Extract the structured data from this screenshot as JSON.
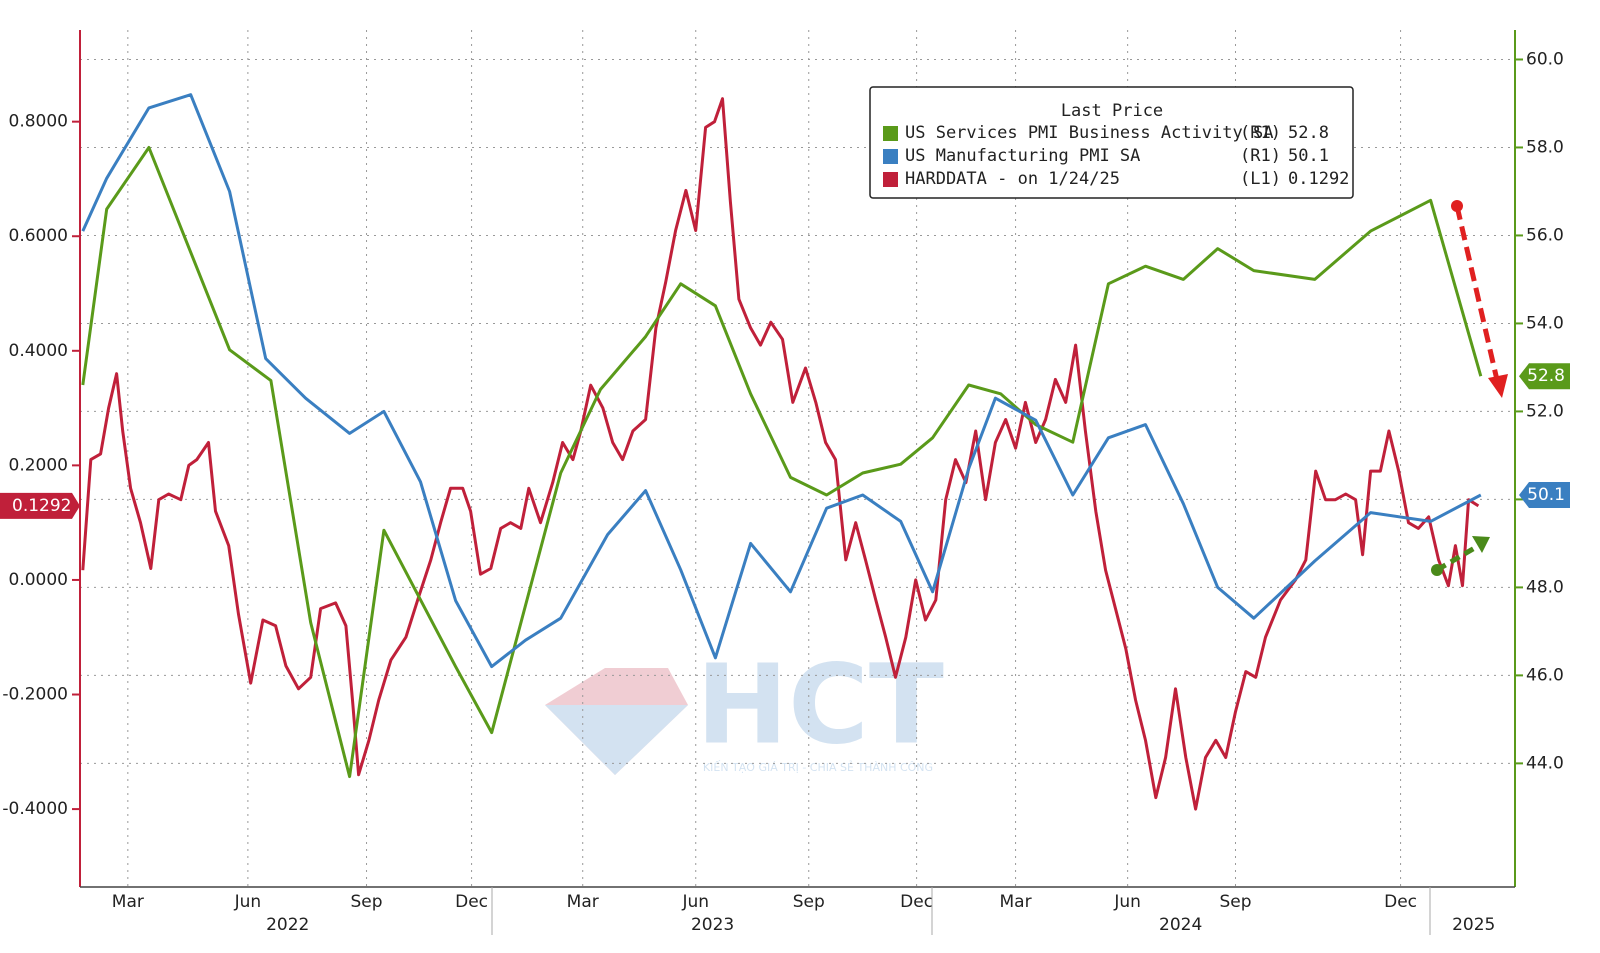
{
  "chart_data": {
    "type": "line",
    "legend_title": "Last Price",
    "legend_position": "top-right",
    "grid": true,
    "xlim": [
      2022.12,
      2025.18
    ],
    "xticks": [
      {
        "value": 2022.222,
        "label": "Mar"
      },
      {
        "value": 2022.478,
        "label": "Jun"
      },
      {
        "value": 2022.731,
        "label": "Sep"
      },
      {
        "value": 2022.955,
        "label": "Dec"
      },
      {
        "value": 2023.192,
        "label": "Mar"
      },
      {
        "value": 2023.433,
        "label": "Jun"
      },
      {
        "value": 2023.674,
        "label": "Sep"
      },
      {
        "value": 2023.904,
        "label": "Dec"
      },
      {
        "value": 2024.115,
        "label": "Mar"
      },
      {
        "value": 2024.354,
        "label": "Jun"
      },
      {
        "value": 2024.584,
        "label": "Sep"
      },
      {
        "value": 2024.936,
        "label": "Dec"
      }
    ],
    "year_labels": [
      {
        "value": 2022.563,
        "label": "2022"
      },
      {
        "value": 2023.469,
        "label": "2023"
      },
      {
        "value": 2024.467,
        "label": "2024"
      },
      {
        "value": 2025.092,
        "label": "2025"
      }
    ],
    "ylim": [
      -0.536,
      0.96
    ],
    "yticks": [
      {
        "value": -0.4,
        "label": "-0.4000"
      },
      {
        "value": -0.2,
        "label": "-0.2000"
      },
      {
        "value": 0,
        "label": "0.0000"
      },
      {
        "value": 0.2,
        "label": "0.2000"
      },
      {
        "value": 0.4,
        "label": "0.4000"
      },
      {
        "value": 0.6,
        "label": "0.6000"
      },
      {
        "value": 0.8,
        "label": "0.8000"
      }
    ],
    "y2lim": [
      41.19,
      60.67
    ],
    "y2ticks": [
      {
        "value": 44,
        "label": "44.0"
      },
      {
        "value": 46,
        "label": "46.0"
      },
      {
        "value": 48,
        "label": "48.0"
      },
      {
        "value": 50,
        "label": "50.0"
      },
      {
        "value": 52,
        "label": "52.0"
      },
      {
        "value": 54,
        "label": "54.0"
      },
      {
        "value": 56,
        "label": "56.0"
      },
      {
        "value": 58,
        "label": "58.0"
      },
      {
        "value": 60,
        "label": "60.0"
      }
    ],
    "series": [
      {
        "name": "US Services PMI Business Activity SA",
        "tag": "(R1)",
        "last_value": 52.8,
        "color": "#5a9a1a",
        "axis": "y2",
        "x": [
          2022.126,
          2022.177,
          2022.267,
          2022.439,
          2022.527,
          2022.612,
          2022.695,
          2022.768,
          2022.921,
          2022.998,
          2023.145,
          2023.23,
          2023.326,
          2023.401,
          2023.475,
          2023.55,
          2023.635,
          2023.712,
          2023.789,
          2023.87,
          2023.938,
          2024.015,
          2024.083,
          2024.158,
          2024.237,
          2024.313,
          2024.392,
          2024.473,
          2024.546,
          2024.623,
          2024.753,
          2024.872,
          2025.0,
          2025.107
        ],
        "values": [
          52.6,
          56.6,
          58.0,
          53.4,
          52.7,
          47.2,
          43.7,
          49.3,
          46.2,
          44.7,
          50.6,
          52.5,
          53.7,
          54.9,
          54.4,
          52.4,
          50.5,
          50.1,
          50.6,
          50.8,
          51.4,
          52.6,
          52.4,
          51.7,
          51.3,
          54.9,
          55.3,
          55.0,
          55.7,
          55.2,
          55.0,
          56.1,
          56.8,
          52.8
        ]
      },
      {
        "name": "US Manufacturing PMI SA",
        "tag": "(R1)",
        "last_value": 50.1,
        "color": "#3a7fc1",
        "axis": "y2",
        "x": [
          2022.126,
          2022.177,
          2022.267,
          2022.356,
          2022.439,
          2022.516,
          2022.601,
          2022.695,
          2022.768,
          2022.846,
          2022.921,
          2022.998,
          2023.07,
          2023.145,
          2023.245,
          2023.326,
          2023.401,
          2023.475,
          2023.55,
          2023.635,
          2023.712,
          2023.789,
          2023.87,
          2023.938,
          2024.015,
          2024.072,
          2024.158,
          2024.237,
          2024.313,
          2024.392,
          2024.473,
          2024.546,
          2024.623,
          2024.753,
          2024.872,
          2025.0,
          2025.107
        ],
        "values": [
          56.1,
          57.3,
          58.9,
          59.2,
          57.0,
          53.2,
          52.3,
          51.5,
          52.0,
          50.4,
          47.7,
          46.2,
          46.8,
          47.3,
          49.2,
          50.2,
          48.4,
          46.4,
          49.0,
          47.9,
          49.8,
          50.1,
          49.5,
          47.9,
          50.7,
          52.3,
          51.8,
          50.1,
          51.4,
          51.7,
          49.9,
          48.0,
          47.3,
          48.6,
          49.7,
          49.5,
          50.1
        ]
      },
      {
        "name": "HARDDATA -  on 1/24/25",
        "tag": "(L1)",
        "last_value": 0.1292,
        "color": "#c0203a",
        "axis": "y",
        "x": [
          2022.126,
          2022.143,
          2022.164,
          2022.181,
          2022.198,
          2022.211,
          2022.228,
          2022.249,
          2022.271,
          2022.288,
          2022.309,
          2022.335,
          2022.352,
          2022.369,
          2022.394,
          2022.409,
          2022.437,
          2022.458,
          2022.484,
          2022.51,
          2022.537,
          2022.559,
          2022.586,
          2022.612,
          2022.633,
          2022.665,
          2022.687,
          2022.701,
          2022.714,
          2022.736,
          2022.757,
          2022.783,
          2022.815,
          2022.842,
          2022.868,
          2022.889,
          2022.91,
          2022.936,
          2022.953,
          2022.974,
          2022.996,
          2023.017,
          2023.038,
          2023.06,
          2023.077,
          2023.102,
          2023.128,
          2023.149,
          2023.171,
          2023.188,
          2023.209,
          2023.235,
          2023.256,
          2023.277,
          2023.299,
          2023.326,
          2023.348,
          2023.369,
          2023.39,
          2023.412,
          2023.433,
          2023.454,
          2023.473,
          2023.49,
          2023.507,
          2023.525,
          2023.55,
          2023.571,
          2023.593,
          2023.618,
          2023.64,
          2023.667,
          2023.689,
          2023.71,
          2023.731,
          2023.753,
          2023.774,
          2023.795,
          2023.817,
          2023.838,
          2023.859,
          2023.881,
          2023.902,
          2023.923,
          2023.945,
          2023.966,
          2023.987,
          2024.009,
          2024.03,
          2024.051,
          2024.072,
          2024.094,
          2024.115,
          2024.136,
          2024.158,
          2024.179,
          2024.2,
          2024.222,
          2024.243,
          2024.264,
          2024.286,
          2024.307,
          2024.328,
          2024.35,
          2024.371,
          2024.392,
          2024.414,
          2024.435,
          2024.456,
          2024.478,
          2024.499,
          2024.52,
          2024.542,
          2024.563,
          2024.584,
          2024.606,
          2024.627,
          2024.648,
          2024.68,
          2024.712,
          2024.734,
          2024.755,
          2024.776,
          2024.797,
          2024.819,
          2024.84,
          2024.855,
          2024.872,
          2024.893,
          2024.911,
          2024.932,
          2024.953,
          2024.974,
          2024.996,
          2025.017,
          2025.038,
          2025.053,
          2025.068,
          2025.081,
          2025.102
        ],
        "values": [
          0.017,
          0.21,
          0.22,
          0.3,
          0.36,
          0.26,
          0.16,
          0.1,
          0.02,
          0.14,
          0.15,
          0.14,
          0.2,
          0.21,
          0.24,
          0.12,
          0.06,
          -0.06,
          -0.18,
          -0.07,
          -0.08,
          -0.15,
          -0.19,
          -0.17,
          -0.05,
          -0.04,
          -0.08,
          -0.21,
          -0.34,
          -0.28,
          -0.21,
          -0.14,
          -0.1,
          -0.03,
          0.035,
          0.1,
          0.16,
          0.16,
          0.12,
          0.01,
          0.02,
          0.09,
          0.1,
          0.09,
          0.16,
          0.1,
          0.17,
          0.24,
          0.21,
          0.26,
          0.34,
          0.3,
          0.24,
          0.21,
          0.26,
          0.28,
          0.44,
          0.52,
          0.61,
          0.68,
          0.61,
          0.79,
          0.8,
          0.84,
          0.66,
          0.49,
          0.44,
          0.41,
          0.45,
          0.42,
          0.31,
          0.37,
          0.31,
          0.24,
          0.21,
          0.035,
          0.1,
          0.035,
          -0.035,
          -0.1,
          -0.17,
          -0.1,
          0.0,
          -0.07,
          -0.035,
          0.14,
          0.21,
          0.17,
          0.26,
          0.14,
          0.24,
          0.28,
          0.23,
          0.31,
          0.24,
          0.28,
          0.35,
          0.31,
          0.41,
          0.26,
          0.12,
          0.017,
          -0.05,
          -0.12,
          -0.21,
          -0.28,
          -0.38,
          -0.31,
          -0.19,
          -0.31,
          -0.4,
          -0.31,
          -0.28,
          -0.31,
          -0.23,
          -0.16,
          -0.17,
          -0.1,
          -0.035,
          0.0,
          0.035,
          0.19,
          0.14,
          0.14,
          0.15,
          0.14,
          0.044,
          0.19,
          0.19,
          0.26,
          0.19,
          0.1,
          0.09,
          0.11,
          0.035,
          -0.01,
          0.06,
          -0.01,
          0.14,
          0.1292
        ]
      }
    ],
    "watermark": {
      "logo": "HCT",
      "slogan": "KIẾN TẠO GIÁ TRỊ - CHIA SẺ THÀNH CÔNG"
    }
  }
}
